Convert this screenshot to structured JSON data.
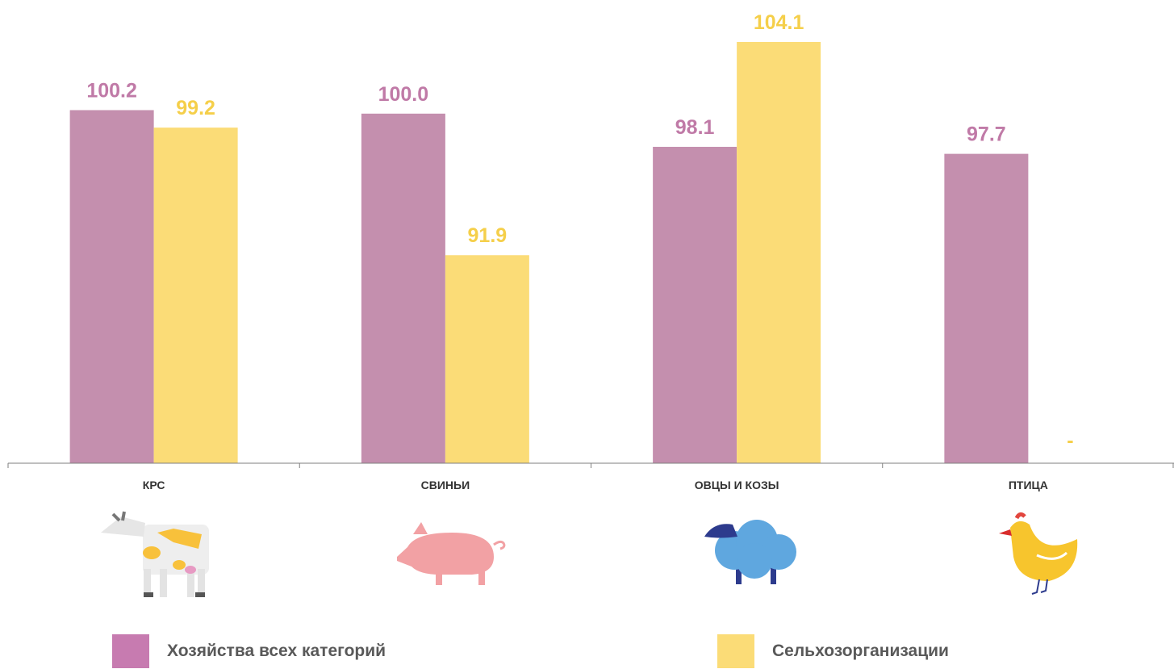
{
  "chart_data": {
    "type": "bar",
    "categories": [
      "КРС",
      "СВИНЬИ",
      "ОВЦЫ И КОЗЫ",
      "ПТИЦА"
    ],
    "series": [
      {
        "name": "Хозяйства всех категорий",
        "values": [
          100.2,
          100.0,
          98.1,
          97.7
        ],
        "labels": [
          "100.2",
          "100.0",
          "98.1",
          "97.7"
        ],
        "color": "#c48fae"
      },
      {
        "name": "Сельхозорганизации",
        "values": [
          99.2,
          91.9,
          104.1,
          null
        ],
        "labels": [
          "99.2",
          "91.9",
          "104.1",
          "-"
        ],
        "color": "#fbdc77"
      }
    ],
    "ylim": [
      80,
      105
    ],
    "grid": false,
    "legend_position": "bottom",
    "icons": [
      "cow-icon",
      "pig-icon",
      "sheep-icon",
      "chicken-icon"
    ]
  },
  "legend": {
    "items": [
      {
        "label": "Хозяйства всех категорий",
        "color": "#c77bb0"
      },
      {
        "label": "Сельхозорганизации",
        "color": "#fbdc77"
      }
    ]
  }
}
